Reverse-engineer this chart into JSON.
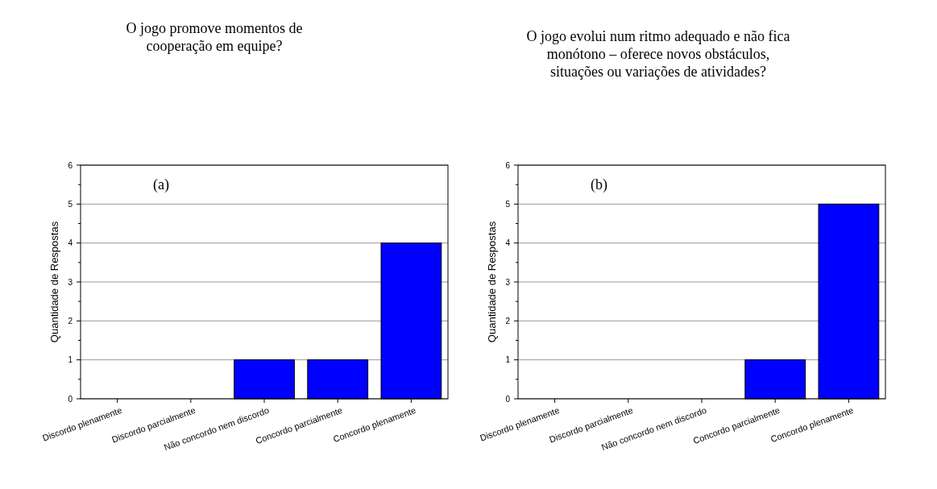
{
  "chart_data": [
    {
      "type": "bar",
      "title": "O jogo promove momentos de\ncooperação em equipe?",
      "ylabel": "Quantidade de Respostas",
      "annotations": [
        "(a)"
      ],
      "categories": [
        "Discordo plenamente",
        "Discordo parcialmente",
        "Não concordo nem discordo",
        "Concordo parcialmente",
        "Concordo plenamente"
      ],
      "values": [
        0,
        0,
        1,
        1,
        4
      ],
      "color": "#0000ff",
      "ylim": [
        0,
        6
      ],
      "yticks": [
        0,
        {
          "value": 0.5,
          "label": null
        },
        1,
        {
          "value": 1.5,
          "label": null
        },
        2,
        {
          "value": 2.5,
          "label": null
        },
        3,
        {
          "value": 3.5,
          "label": null
        },
        4,
        {
          "value": 4.5,
          "label": null
        },
        5,
        {
          "value": 5.5,
          "label": null
        },
        6
      ],
      "grid": "y"
    },
    {
      "type": "bar",
      "title": "O jogo evolui num ritmo adequado e não fica\nmonótono – oferece novos obstáculos,\nsituações ou variações de atividades?",
      "ylabel": "Quantidade de Respostas",
      "annotations": [
        "(b)"
      ],
      "categories": [
        "Discordo plenamente",
        "Discordo parcialmente",
        "Não concordo nem discordo",
        "Concordo parcialmente",
        "Concordo plenamente"
      ],
      "values": [
        0,
        0,
        0,
        1,
        5
      ],
      "color": "#0000ff",
      "ylim": [
        0,
        6
      ],
      "yticks": [
        0,
        {
          "value": 0.5,
          "label": null
        },
        1,
        {
          "value": 1.5,
          "label": null
        },
        2,
        {
          "value": 2.5,
          "label": null
        },
        3,
        {
          "value": 3.5,
          "label": null
        },
        4,
        {
          "value": 4.5,
          "label": null
        },
        5,
        {
          "value": 5.5,
          "label": null
        },
        6
      ],
      "grid": "y"
    }
  ]
}
